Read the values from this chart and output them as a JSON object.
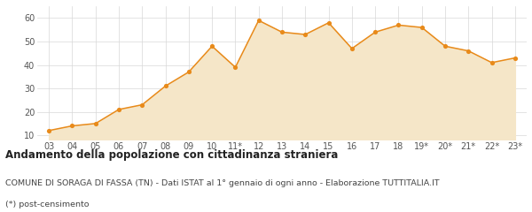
{
  "x_labels": [
    "03",
    "04",
    "05",
    "06",
    "07",
    "08",
    "09",
    "10",
    "11*",
    "12",
    "13",
    "14",
    "15",
    "16",
    "17",
    "18",
    "19*",
    "20*",
    "21*",
    "22*",
    "23*"
  ],
  "y_values": [
    12,
    14,
    15,
    21,
    23,
    31,
    37,
    48,
    39,
    59,
    54,
    53,
    58,
    47,
    54,
    57,
    56,
    48,
    46,
    41,
    43
  ],
  "line_color": "#e88a1a",
  "fill_color": "#f5e6c8",
  "marker_color": "#e88a1a",
  "background_color": "#ffffff",
  "grid_color": "#d8d8d8",
  "ylim": [
    8,
    65
  ],
  "yticks": [
    10,
    20,
    30,
    40,
    50,
    60
  ],
  "title": "Andamento della popolazione con cittadinanza straniera",
  "subtitle": "COMUNE DI SORAGA DI FASSA (TN) - Dati ISTAT al 1° gennaio di ogni anno - Elaborazione TUTTITALIA.IT",
  "footnote": "(*) post-censimento",
  "title_fontsize": 8.5,
  "subtitle_fontsize": 6.8,
  "footnote_fontsize": 6.8,
  "tick_fontsize": 7.0
}
